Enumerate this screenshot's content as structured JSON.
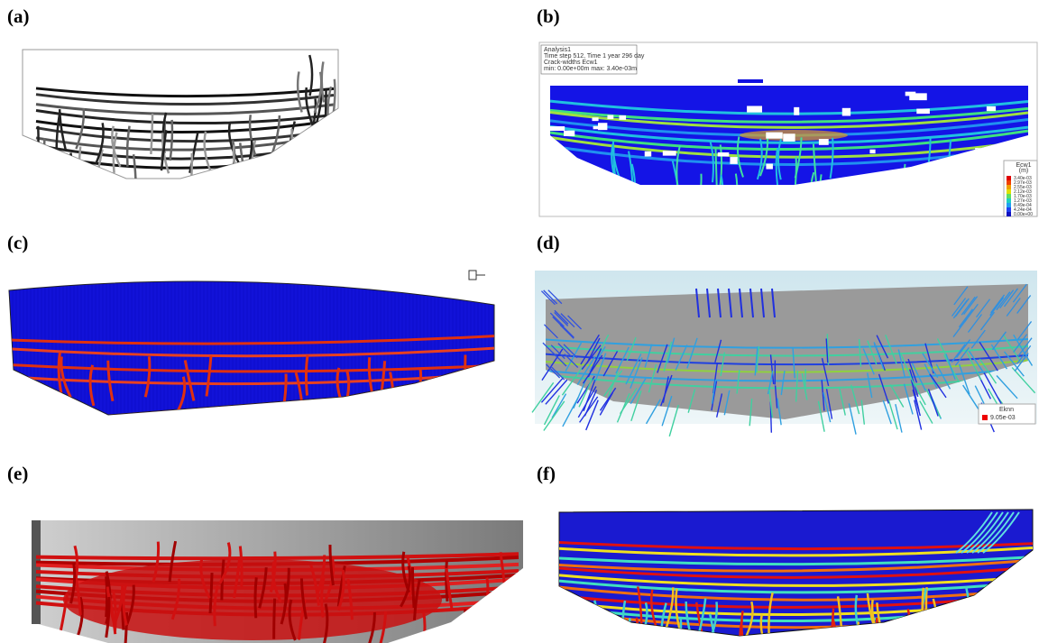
{
  "panels": [
    {
      "label": "(a)"
    },
    {
      "label": "(b)",
      "info": [
        "Analysis1",
        "Time step 512, Time 1 year 296 day",
        "Crack-widths Ecw1",
        "min: 0.00e+00m max: 3.40e-03m"
      ],
      "legend": {
        "title": "Ecw1",
        "unit": "(m)",
        "labels": [
          "3.40e-03",
          "2.97e-03",
          "2.55e-03",
          "2.12e-03",
          "1.70e-03",
          "1.27e-03",
          "8.49e-04",
          "4.24e-04",
          "0.00e+00"
        ]
      }
    },
    {
      "label": "(c)"
    },
    {
      "label": "(d)",
      "legend": {
        "title": "Eknn",
        "labels": [
          "9.05e-03"
        ]
      }
    },
    {
      "label": "(e)"
    },
    {
      "label": "(f)"
    }
  ]
}
